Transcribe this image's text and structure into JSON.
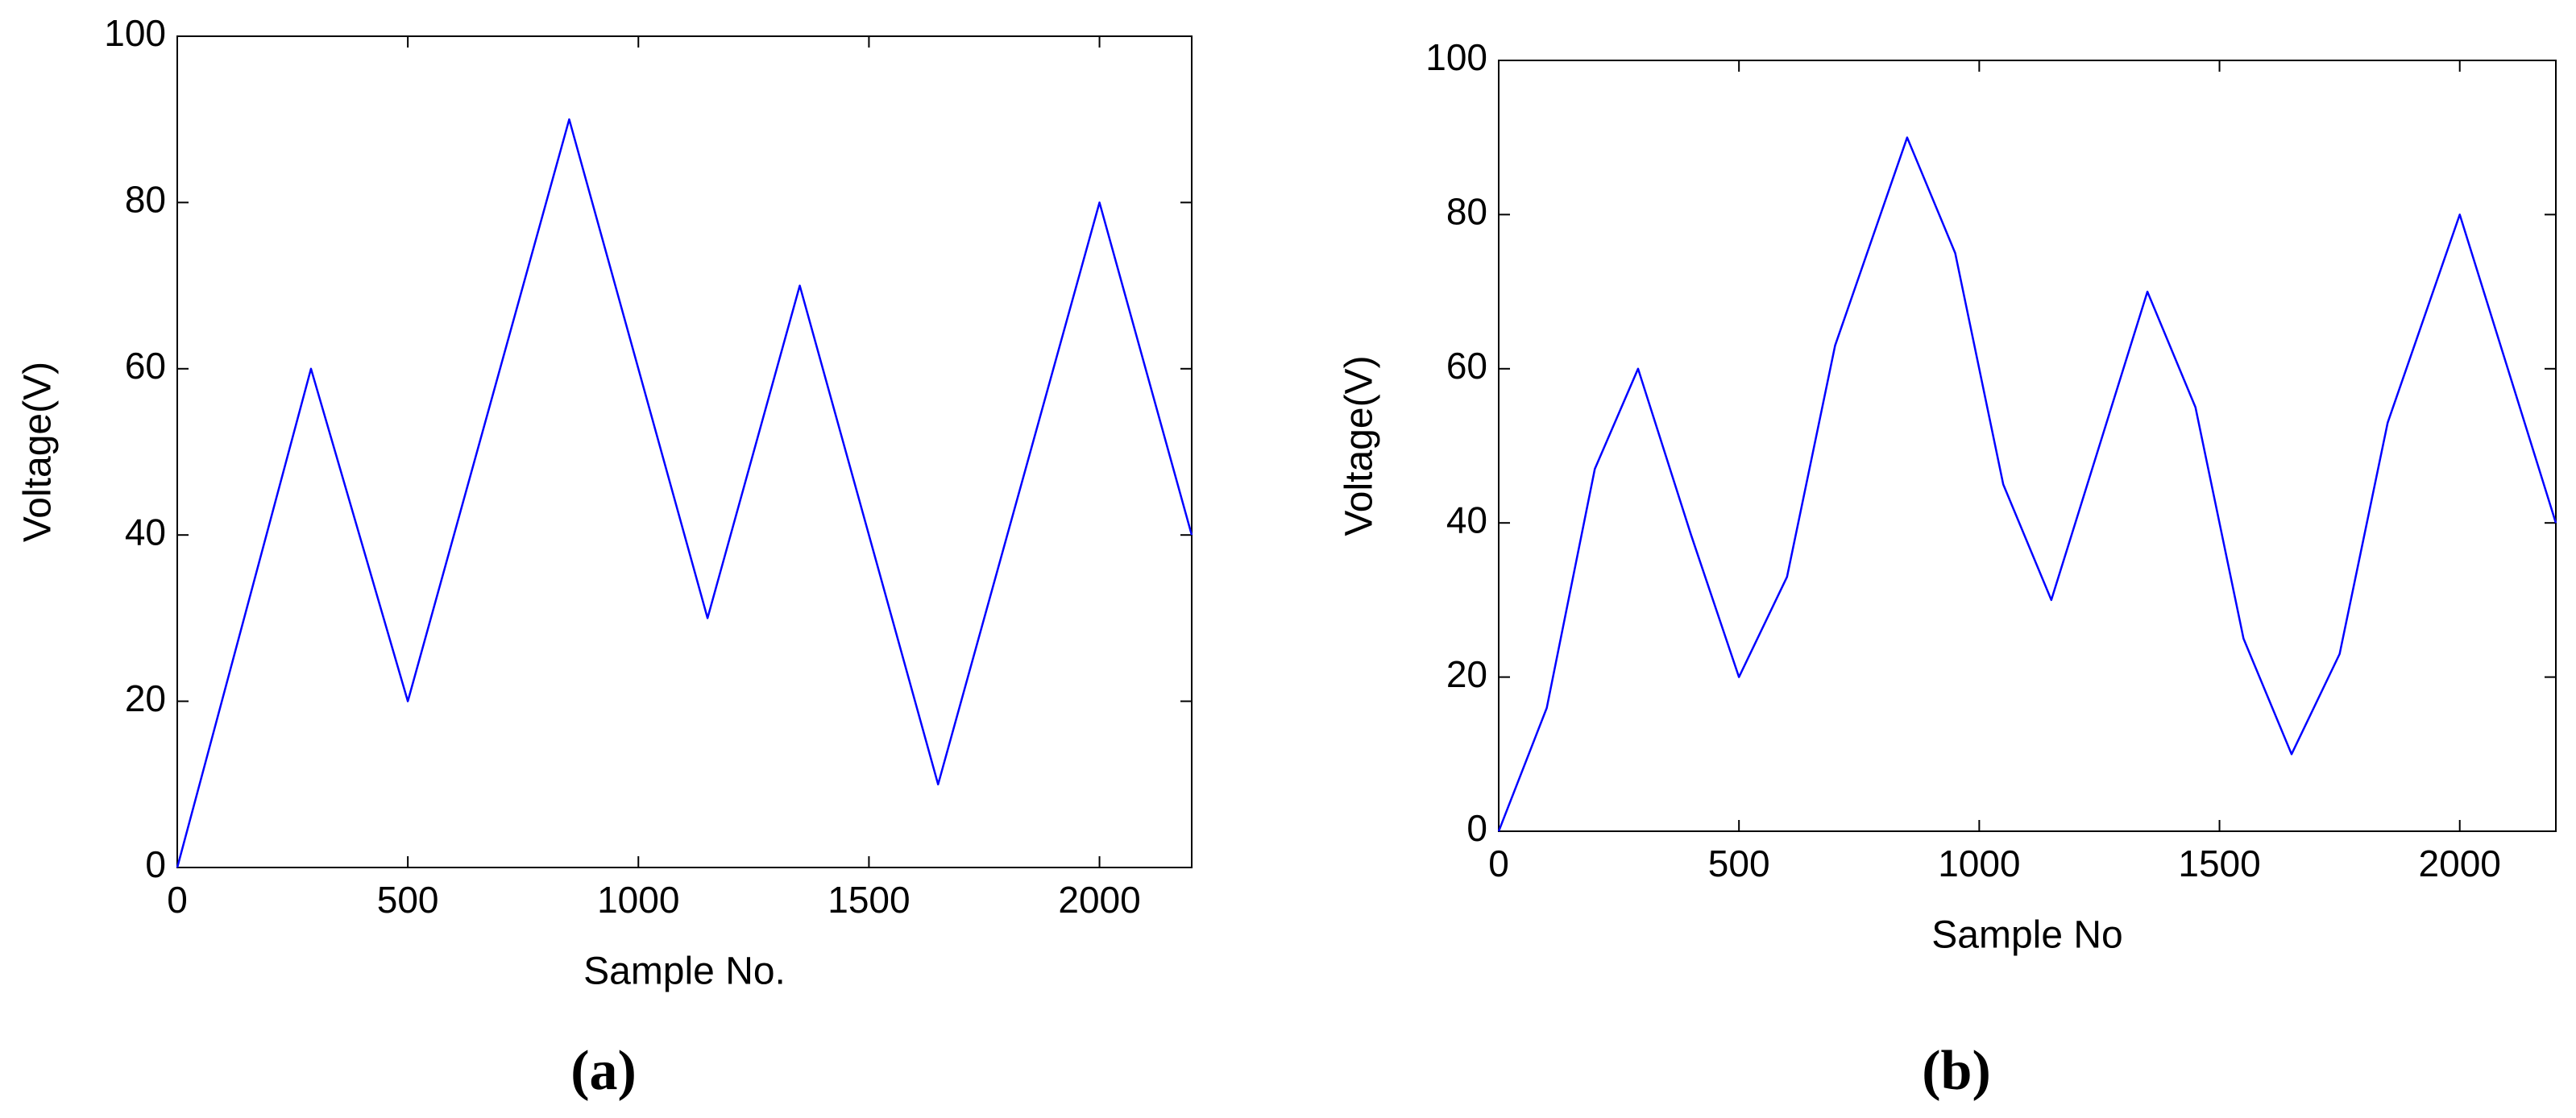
{
  "chart_data": [
    {
      "type": "line",
      "caption": "(a)",
      "x_label": "Sample No.",
      "y_label": "Voltage(V)",
      "xlim": [
        0,
        2200
      ],
      "ylim": [
        0,
        100
      ],
      "xticks": [
        0,
        500,
        1000,
        1500,
        2000
      ],
      "yticks": [
        0,
        20,
        40,
        60,
        80,
        100
      ],
      "grid": false,
      "series": [
        {
          "color": "#0000ff",
          "x": [
            0,
            290,
            500,
            850,
            1150,
            1350,
            1650,
            2000,
            2200
          ],
          "values": [
            0,
            60,
            20,
            90,
            30,
            70,
            10,
            80,
            40
          ]
        }
      ]
    },
    {
      "type": "line",
      "caption": "(b)",
      "x_label": "Sample No",
      "y_label": "Voltage(V)",
      "xlim": [
        0,
        2200
      ],
      "ylim": [
        0,
        100
      ],
      "xticks": [
        0,
        500,
        1000,
        1500,
        2000
      ],
      "yticks": [
        0,
        20,
        40,
        60,
        80,
        100
      ],
      "grid": false,
      "series": [
        {
          "color": "#0000ff",
          "x": [
            0,
            100,
            200,
            290,
            400,
            500,
            600,
            700,
            850,
            950,
            1050,
            1150,
            1250,
            1350,
            1450,
            1550,
            1650,
            1750,
            1850,
            2000,
            2100,
            2200
          ],
          "values": [
            0,
            16,
            47,
            60,
            38.5,
            20,
            33,
            63,
            90,
            75,
            45,
            30,
            50,
            70,
            55,
            25,
            10,
            23,
            53,
            80,
            60,
            40
          ]
        }
      ]
    }
  ]
}
